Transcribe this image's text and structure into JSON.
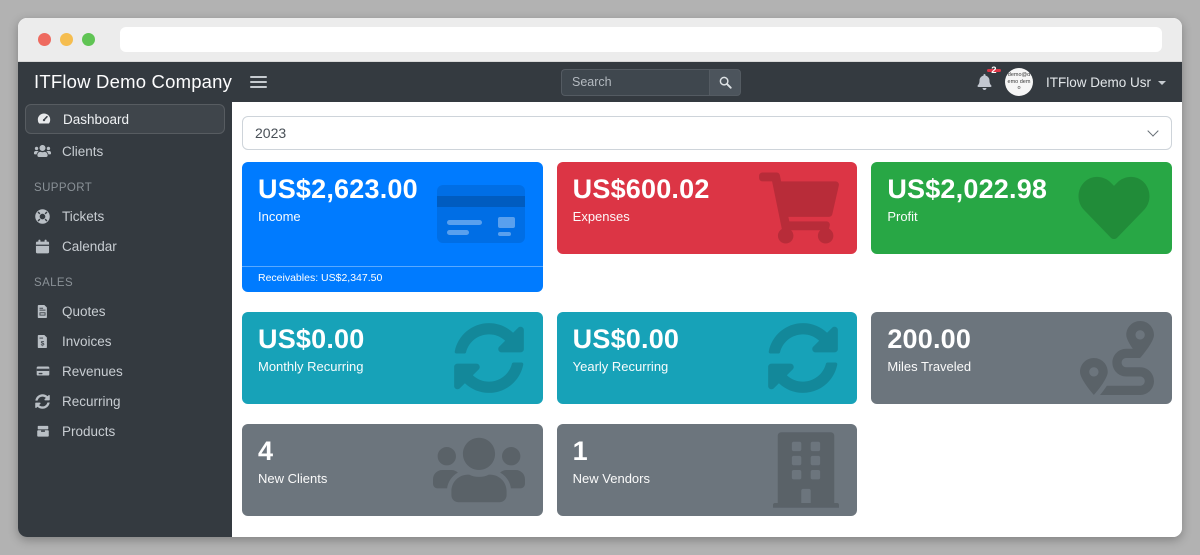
{
  "browser": {
    "traffic_lights": [
      "close",
      "minimize",
      "maximize"
    ],
    "traffic_colors": [
      "#ee6a5f",
      "#f5bd4f",
      "#60c454"
    ]
  },
  "sidebar": {
    "brand": "ITFlow Demo Company",
    "sections": [
      {
        "header": "",
        "items": [
          {
            "icon": "dashboard",
            "label": "Dashboard",
            "active": true
          },
          {
            "icon": "users",
            "label": "Clients",
            "active": false
          }
        ]
      },
      {
        "header": "SUPPORT",
        "items": [
          {
            "icon": "life-ring",
            "label": "Tickets",
            "active": false
          },
          {
            "icon": "calendar",
            "label": "Calendar",
            "active": false
          }
        ]
      },
      {
        "header": "SALES",
        "items": [
          {
            "icon": "file-invoice",
            "label": "Quotes",
            "active": false
          },
          {
            "icon": "file-invoice-dollar",
            "label": "Invoices",
            "active": false
          },
          {
            "icon": "credit-card",
            "label": "Revenues",
            "active": false
          },
          {
            "icon": "sync",
            "label": "Recurring",
            "active": false
          },
          {
            "icon": "box",
            "label": "Products",
            "active": false
          }
        ]
      }
    ]
  },
  "navbar": {
    "search_placeholder": "Search",
    "notification_count": "2",
    "avatar_text": "demo@demo demo",
    "user_name": "ITFlow Demo Usr"
  },
  "main": {
    "year_select": "2023",
    "cards": [
      {
        "value": "US$2,623.00",
        "label": "Income",
        "footer": "Receivables: US$2,347.50",
        "color": "#007bff",
        "icon": "credit-card"
      },
      {
        "value": "US$600.02",
        "label": "Expenses",
        "color": "#dc3545",
        "icon": "shopping-cart"
      },
      {
        "value": "US$2,022.98",
        "label": "Profit",
        "color": "#28a745",
        "icon": "heart"
      },
      {
        "value": "US$0.00",
        "label": "Monthly Recurring",
        "color": "#17a2b8",
        "icon": "sync"
      },
      {
        "value": "US$0.00",
        "label": "Yearly Recurring",
        "color": "#17a2b8",
        "icon": "sync"
      },
      {
        "value": "200.00",
        "label": "Miles Traveled",
        "color": "#6c757d",
        "icon": "route"
      },
      {
        "value": "4",
        "label": "New Clients",
        "color": "#6c757d",
        "icon": "users"
      },
      {
        "value": "1",
        "label": "New Vendors",
        "color": "#6c757d",
        "icon": "building"
      }
    ]
  }
}
